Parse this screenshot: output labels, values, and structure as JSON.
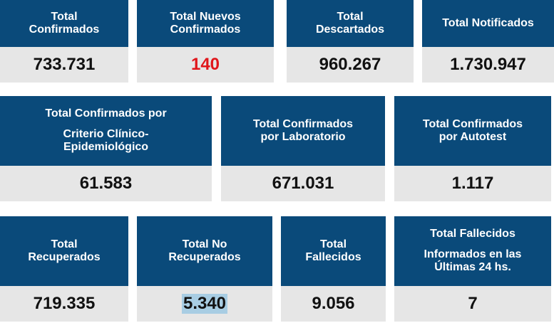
{
  "row1": [
    {
      "title_1": "Total",
      "title_2": "Confirmados",
      "value": "733.731"
    },
    {
      "title_1": "Total Nuevos",
      "title_2": "Confirmados",
      "value": "140"
    },
    {
      "title_1": "Total",
      "title_2": "Descartados",
      "value": "960.267"
    },
    {
      "title_1": "Total Notificados",
      "title_2": "",
      "value": "1.730.947"
    }
  ],
  "row2": [
    {
      "title_1": "Total Confirmados por",
      "title_2": "Criterio Clínico-",
      "title_3": "Epidemiológico",
      "value": "61.583"
    },
    {
      "title_1": "Total Confirmados",
      "title_2": "por Laboratorio",
      "value": "671.031"
    },
    {
      "title_1": "Total Confirmados",
      "title_2": "por Autotest",
      "value": "1.117"
    }
  ],
  "row3": [
    {
      "title_1": "Total",
      "title_2": "Recuperados",
      "value": "719.335"
    },
    {
      "title_1": "Total No",
      "title_2": "Recuperados",
      "value": "5.340"
    },
    {
      "title_1": "Total",
      "title_2": "Fallecidos",
      "value": "9.056"
    },
    {
      "title_1": "Total Fallecidos",
      "title_2": "Informados en las",
      "title_3": "Últimas 24 hs.",
      "value": "7"
    }
  ],
  "colors": {
    "header": "#0a4a7a",
    "value_bg": "#e6e6e6",
    "highlight_red": "#e0161b"
  }
}
